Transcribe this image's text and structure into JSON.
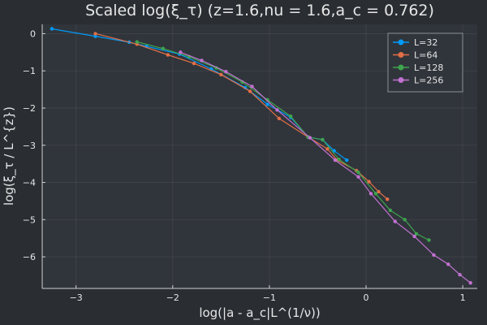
{
  "chart_data": {
    "type": "line",
    "title": "Scaled log(ξ_τ) (z=1.6,nu = 1.6,a_c = 0.762)",
    "xlabel": "log(|a - a_c|L^(1/ν))",
    "ylabel": "log(ξ_τ / L^{z})",
    "xlim": [
      -3.35,
      1.15
    ],
    "ylim": [
      -6.85,
      0.25
    ],
    "xticks": [
      -3,
      -2,
      -1,
      0,
      1
    ],
    "yticks": [
      0,
      -1,
      -2,
      -3,
      -4,
      -5,
      -6
    ],
    "xtick_labels": [
      "−3",
      "−2",
      "−1",
      "0",
      "1"
    ],
    "ytick_labels": [
      "0",
      "−1",
      "−2",
      "−3",
      "−4",
      "−5",
      "−6"
    ],
    "grid": true,
    "legend_position": "top-right",
    "background_color": "#2a2e33",
    "plot_background_color": "#30353b",
    "series": [
      {
        "name": "L=32",
        "color": "#009afa",
        "x": [
          -3.25,
          -2.8,
          -2.45,
          -2.27,
          -1.93,
          -1.6,
          -1.25,
          -1.02,
          -0.78,
          -0.6,
          -0.45,
          -0.33,
          -0.2
        ],
        "y": [
          0.13,
          -0.07,
          -0.23,
          -0.34,
          -0.55,
          -0.95,
          -1.45,
          -1.9,
          -2.25,
          -2.78,
          -2.85,
          -3.15,
          -3.4
        ]
      },
      {
        "name": "L=64",
        "color": "#e36f47",
        "x": [
          -2.8,
          -2.37,
          -2.05,
          -1.78,
          -1.5,
          -1.2,
          -0.9,
          -0.6,
          -0.4,
          -0.3,
          -0.1,
          0.03,
          0.13,
          0.22
        ],
        "y": [
          0.0,
          -0.28,
          -0.57,
          -0.8,
          -1.1,
          -1.55,
          -2.28,
          -2.78,
          -3.1,
          -3.4,
          -3.68,
          -3.98,
          -4.25,
          -4.45
        ]
      },
      {
        "name": "L=128",
        "color": "#3ea44e",
        "x": [
          -2.37,
          -2.1,
          -1.83,
          -1.55,
          -1.28,
          -1.02,
          -0.78,
          -0.6,
          -0.45,
          -0.28,
          -0.08,
          0.1,
          0.25,
          0.4,
          0.52,
          0.65
        ],
        "y": [
          -0.22,
          -0.4,
          -0.62,
          -0.92,
          -1.3,
          -1.78,
          -2.22,
          -2.78,
          -2.85,
          -3.38,
          -3.73,
          -4.3,
          -4.75,
          -5.0,
          -5.38,
          -5.55
        ]
      },
      {
        "name": "L=256",
        "color": "#c271d2",
        "x": [
          -1.92,
          -1.7,
          -1.45,
          -1.18,
          -0.92,
          -0.58,
          -0.32,
          -0.08,
          0.05,
          0.3,
          0.5,
          0.7,
          0.85,
          0.97,
          1.08
        ],
        "y": [
          -0.5,
          -0.72,
          -1.02,
          -1.42,
          -2.05,
          -2.8,
          -3.4,
          -3.85,
          -4.3,
          -5.05,
          -5.45,
          -5.95,
          -6.2,
          -6.48,
          -6.7
        ]
      }
    ]
  }
}
